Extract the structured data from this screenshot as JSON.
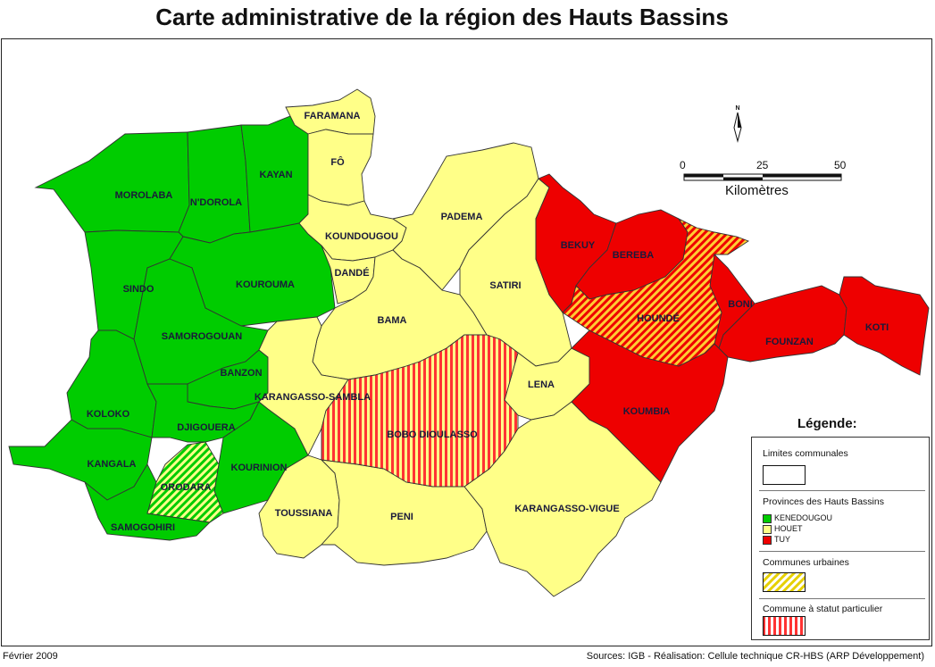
{
  "title": "Carte administrative de la région des Hauts Bassins",
  "footer": {
    "date": "Février 2009",
    "sources": "Sources: IGB - Réalisation: Cellule technique CR-HBS (ARP Développement)"
  },
  "north_arrow": "N",
  "scale": {
    "ticks": [
      "0",
      "25",
      "50"
    ],
    "unit": "Kilomètres"
  },
  "colors": {
    "kenedougou": "#00cc00",
    "houet": "#ffff88",
    "tuy": "#ee0000",
    "urban_hatch": "#e6d000",
    "special_hatch": "#ff3333"
  },
  "legend": {
    "title": "Légende:",
    "limits_label": "Limites communales",
    "provinces_label": "Provinces des Hauts Bassins",
    "provinces": [
      {
        "name": "KENEDOUGOU",
        "color": "#00cc00"
      },
      {
        "name": "HOUET",
        "color": "#ffff88"
      },
      {
        "name": "TUY",
        "color": "#ee0000"
      }
    ],
    "urban_label": "Communes urbaines",
    "special_label": "Commune à statut particulier"
  },
  "communes": [
    {
      "name": "FARAMANA",
      "province": "HOUET"
    },
    {
      "name": "FÔ",
      "province": "HOUET"
    },
    {
      "name": "KOUNDOUGOU",
      "province": "HOUET"
    },
    {
      "name": "DANDÉ",
      "province": "HOUET"
    },
    {
      "name": "PADEMA",
      "province": "HOUET"
    },
    {
      "name": "SATIRI",
      "province": "HOUET"
    },
    {
      "name": "BAMA",
      "province": "HOUET"
    },
    {
      "name": "KARANGASSO-SAMBLA",
      "province": "HOUET"
    },
    {
      "name": "BOBO DIOULASSO",
      "province": "HOUET"
    },
    {
      "name": "LENA",
      "province": "HOUET"
    },
    {
      "name": "TOUSSIANA",
      "province": "HOUET"
    },
    {
      "name": "PENI",
      "province": "HOUET"
    },
    {
      "name": "KARANGASSO-VIGUE",
      "province": "HOUET"
    },
    {
      "name": "MOROLABA",
      "province": "KENEDOUGOU"
    },
    {
      "name": "N'DOROLA",
      "province": "KENEDOUGOU"
    },
    {
      "name": "KAYAN",
      "province": "KENEDOUGOU"
    },
    {
      "name": "SINDO",
      "province": "KENEDOUGOU"
    },
    {
      "name": "KOUROUMA",
      "province": "KENEDOUGOU"
    },
    {
      "name": "SAMOROGOUAN",
      "province": "KENEDOUGOU"
    },
    {
      "name": "BANZON",
      "province": "KENEDOUGOU"
    },
    {
      "name": "KOLOKO",
      "province": "KENEDOUGOU"
    },
    {
      "name": "DJIGOUERA",
      "province": "KENEDOUGOU"
    },
    {
      "name": "KANGALA",
      "province": "KENEDOUGOU"
    },
    {
      "name": "ORODARA",
      "province": "KENEDOUGOU"
    },
    {
      "name": "KOURINION",
      "province": "KENEDOUGOU"
    },
    {
      "name": "SAMOGOHIRI",
      "province": "KENEDOUGOU"
    },
    {
      "name": "BEKUY",
      "province": "TUY"
    },
    {
      "name": "BEREBA",
      "province": "TUY"
    },
    {
      "name": "HOUNDÉ",
      "province": "TUY"
    },
    {
      "name": "BONI",
      "province": "TUY"
    },
    {
      "name": "KOTI",
      "province": "TUY"
    },
    {
      "name": "FOUNZAN",
      "province": "TUY"
    },
    {
      "name": "KOUMBIA",
      "province": "TUY"
    }
  ]
}
